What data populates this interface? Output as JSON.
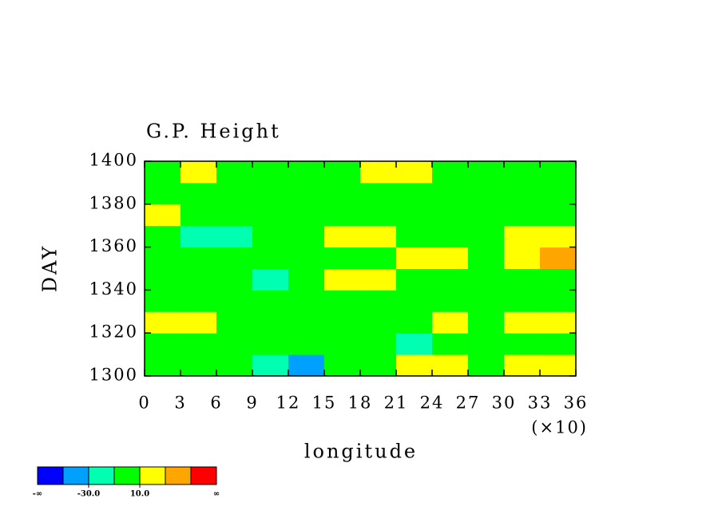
{
  "chart_data": {
    "type": "contour",
    "title": "G.P. Height",
    "xlabel": "longitude",
    "ylabel": "DAY",
    "x_scale_label": "(×10)",
    "xlim": [
      0,
      360
    ],
    "ylim": [
      1300,
      1400
    ],
    "xticks": [
      {
        "value": 0,
        "label": "0"
      },
      {
        "value": 30,
        "label": "3"
      },
      {
        "value": 60,
        "label": "6"
      },
      {
        "value": 90,
        "label": "9"
      },
      {
        "value": 120,
        "label": "12"
      },
      {
        "value": 150,
        "label": "15"
      },
      {
        "value": 180,
        "label": "18"
      },
      {
        "value": 210,
        "label": "21"
      },
      {
        "value": 240,
        "label": "24"
      },
      {
        "value": 270,
        "label": "27"
      },
      {
        "value": 300,
        "label": "30"
      },
      {
        "value": 330,
        "label": "33"
      },
      {
        "value": 360,
        "label": "36"
      }
    ],
    "yticks": [
      1300,
      1320,
      1340,
      1360,
      1380,
      1400
    ],
    "x": [
      15,
      45,
      75,
      105,
      135,
      165,
      195,
      225,
      255,
      285,
      315,
      345
    ],
    "y": [
      1305,
      1315,
      1325,
      1335,
      1345,
      1355,
      1365,
      1375,
      1385,
      1395
    ],
    "z": [
      [
        0,
        -5,
        -10,
        -15,
        -35,
        -5,
        0,
        15,
        15,
        5,
        10,
        15
      ],
      [
        5,
        5,
        -5,
        0,
        -5,
        0,
        -10,
        -15,
        -10,
        -5,
        0,
        5
      ],
      [
        15,
        10,
        5,
        0,
        5,
        -5,
        0,
        5,
        10,
        5,
        15,
        10
      ],
      [
        5,
        0,
        -5,
        0,
        5,
        0,
        -10,
        -5,
        -5,
        0,
        5,
        -5
      ],
      [
        0,
        -5,
        -10,
        -15,
        5,
        20,
        15,
        5,
        0,
        0,
        -5,
        -5
      ],
      [
        0,
        -5,
        0,
        -5,
        -5,
        0,
        5,
        10,
        15,
        5,
        20,
        35
      ],
      [
        -5,
        -15,
        -15,
        0,
        5,
        10,
        15,
        5,
        0,
        5,
        10,
        15
      ],
      [
        20,
        5,
        0,
        -5,
        0,
        5,
        5,
        0,
        -5,
        0,
        0,
        5
      ],
      [
        5,
        0,
        5,
        0,
        0,
        5,
        0,
        0,
        5,
        0,
        5,
        0
      ],
      [
        5,
        10,
        0,
        0,
        5,
        5,
        12,
        15,
        0,
        0,
        -5,
        -5
      ]
    ],
    "colorbar": {
      "levels": [
        -50,
        -30,
        -10,
        10,
        30,
        50
      ],
      "colors": [
        "#0000ff",
        "#00a0ff",
        "#00ffb0",
        "#00ff00",
        "#ffff00",
        "#ffa500",
        "#ff0000"
      ],
      "ticks": [
        {
          "value": -30,
          "label": "-30.0"
        },
        {
          "value": 10,
          "label": "10.0"
        }
      ],
      "low_label": "-∞",
      "high_label": "∞"
    }
  }
}
